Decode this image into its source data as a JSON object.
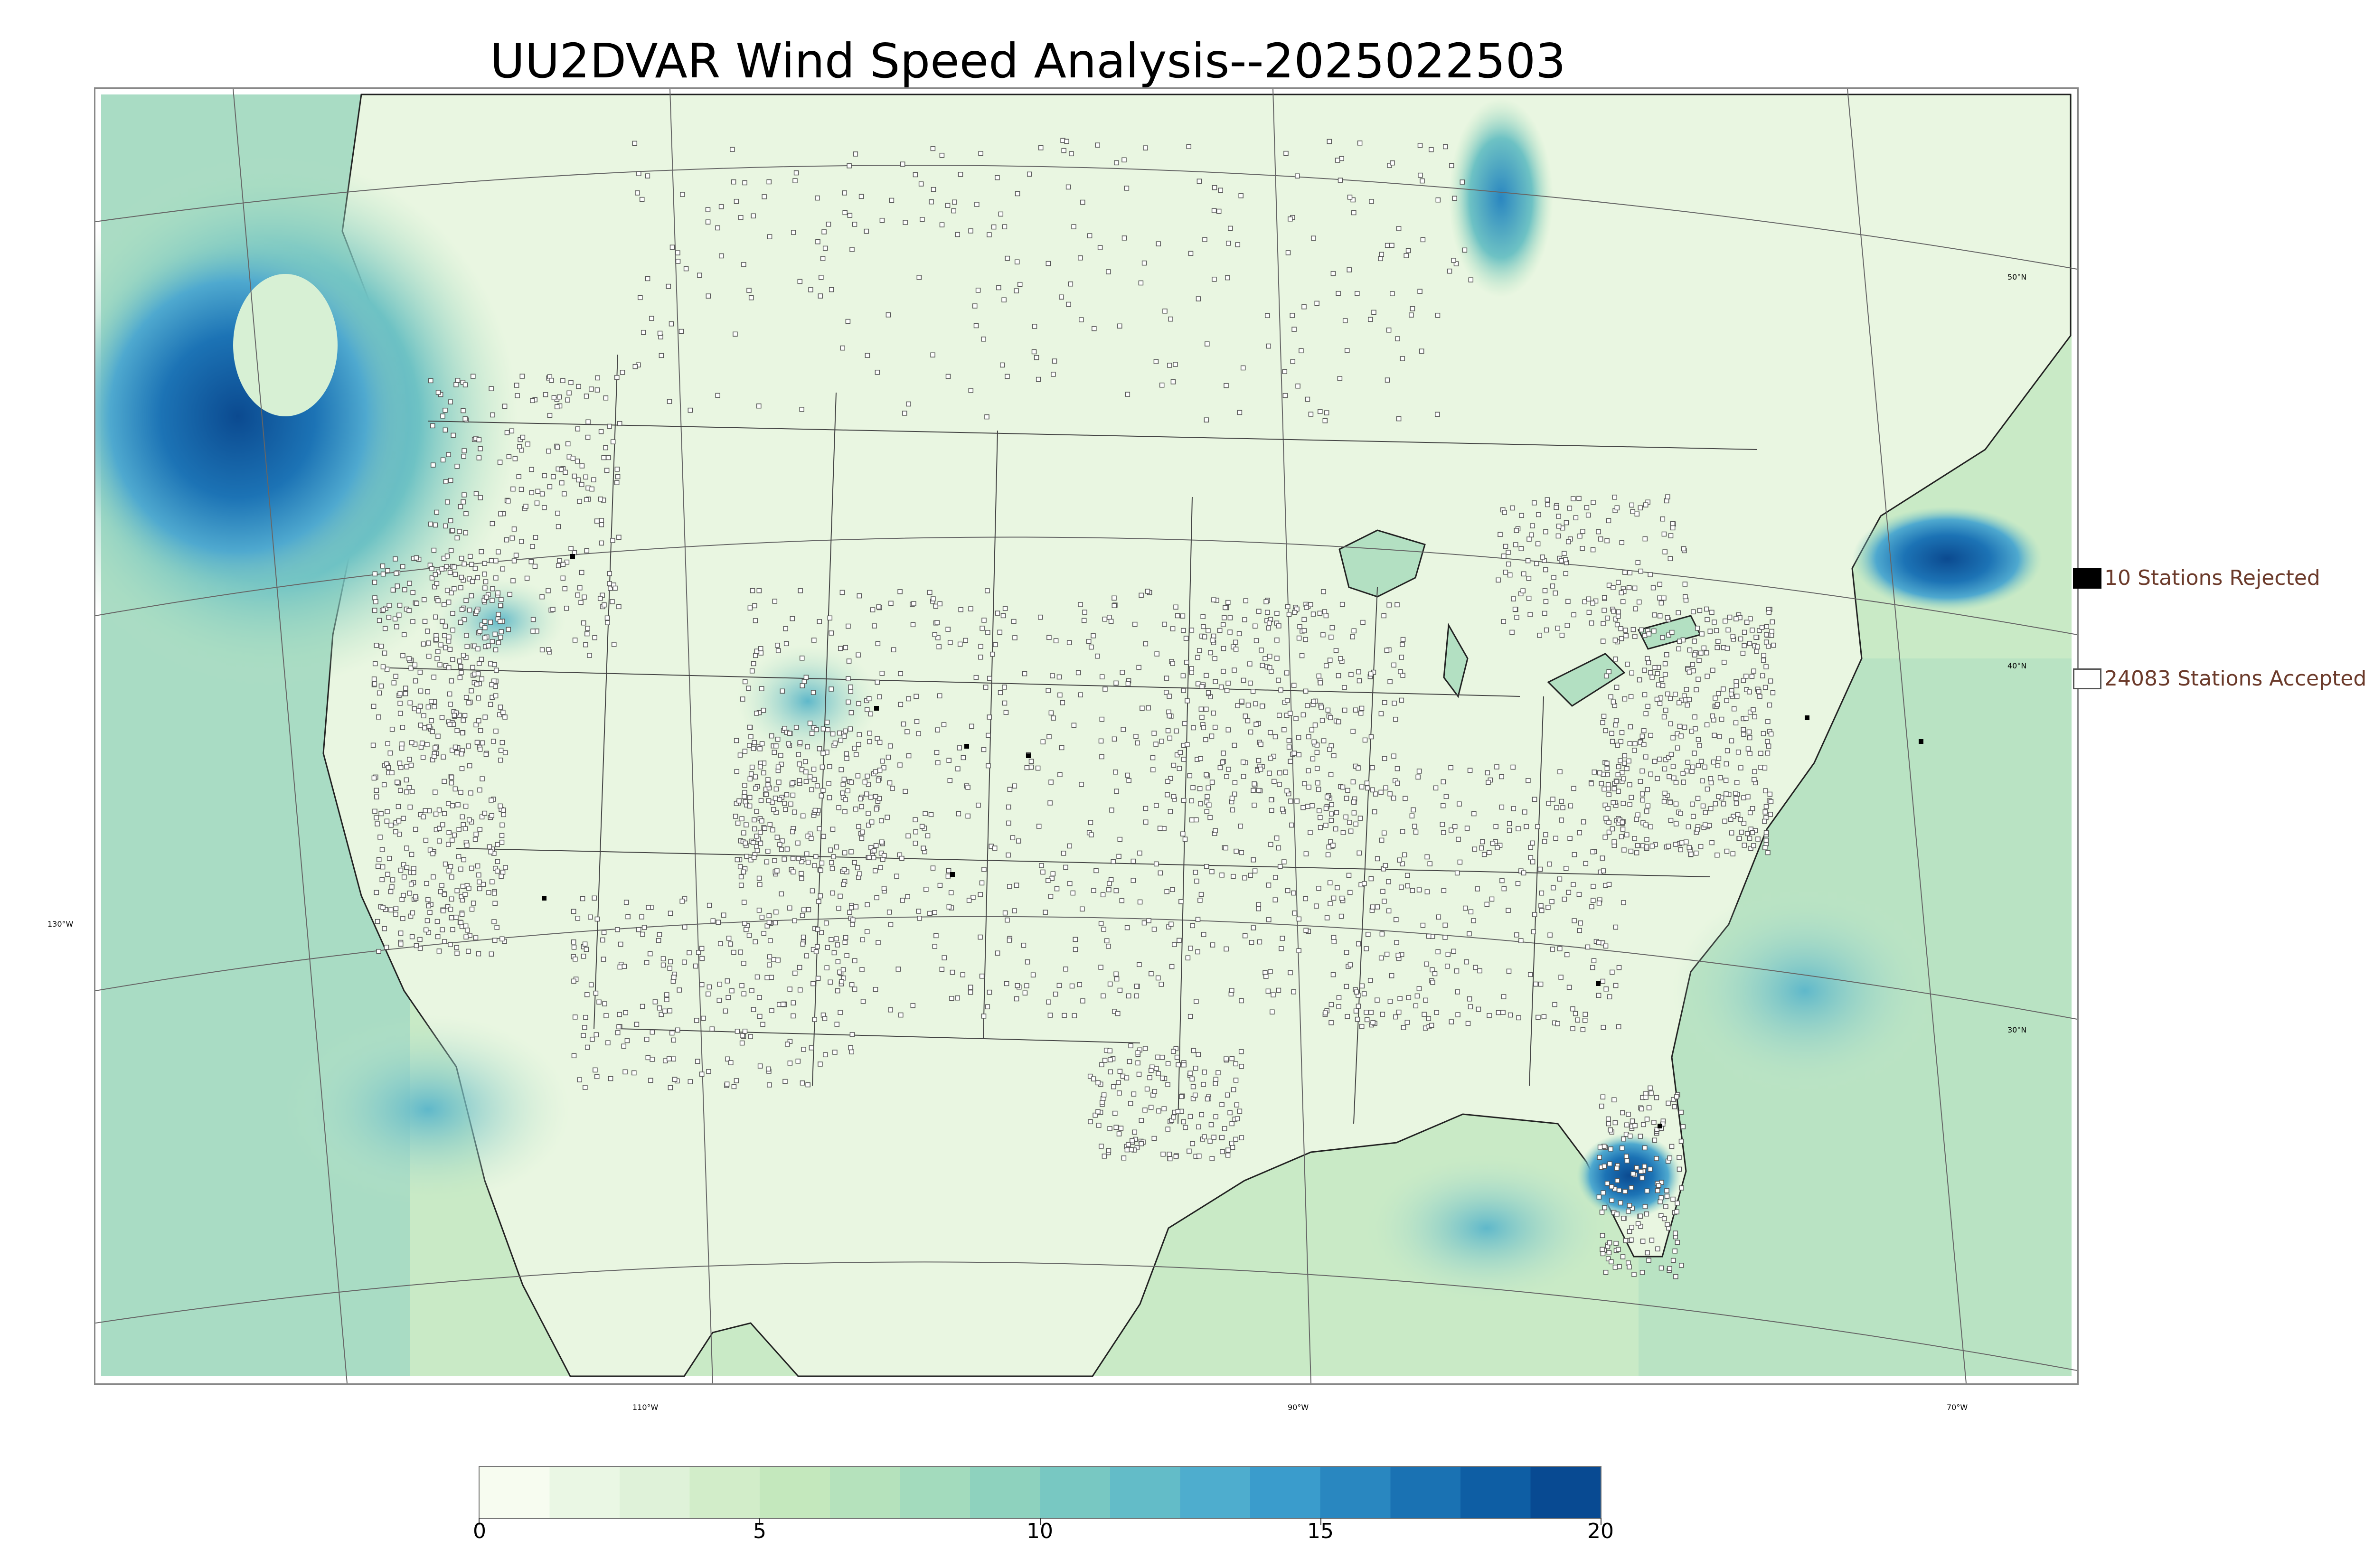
{
  "title": "UU2DVAR Wind Speed Analysis--2025022503",
  "map": {
    "lat_labels": [
      "50°N",
      "40°N",
      "30°N"
    ],
    "lon_labels": [
      "130°W",
      "110°W",
      "90°W",
      "70°W"
    ]
  },
  "legend": {
    "rejected": {
      "label": "10 Stations Rejected",
      "color": "#000000"
    },
    "accepted": {
      "label": "24083 Stations Accepted",
      "color": "#ffffff"
    }
  },
  "colorbar": {
    "ticks": [
      "0",
      "5",
      "10",
      "15",
      "20"
    ],
    "colors": [
      "#f7fcf0",
      "#eaf7e4",
      "#dff2d9",
      "#d2edc9",
      "#c4e8bd",
      "#b5e2bc",
      "#a3dbbd",
      "#8ed2be",
      "#78c8c2",
      "#63bcc8",
      "#4eadce",
      "#3a9ccc",
      "#2987c0",
      "#1a72b3",
      "#0e5ea4",
      "#084a92"
    ]
  },
  "colors": {
    "land": "#e8f5e0",
    "ocean": "#c6e9c9",
    "strong": "#0c4f94",
    "border": "#333333"
  }
}
